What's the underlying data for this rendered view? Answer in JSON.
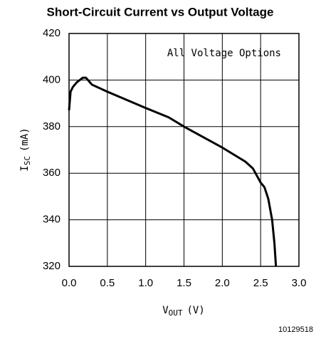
{
  "chart_data": {
    "type": "line",
    "title": "Short-Circuit Current vs Output Voltage",
    "annotation": "All Voltage Options",
    "x_label": {
      "main": "V",
      "sub": "OUT",
      "unit": "(V)"
    },
    "y_label": {
      "main": "I",
      "sub": "SC",
      "unit": "(mA)"
    },
    "figure_id": "10129518",
    "x": [
      0.0,
      0.02,
      0.05,
      0.1,
      0.18,
      0.22,
      0.3,
      0.5,
      1.0,
      1.3,
      1.5,
      2.0,
      2.3,
      2.4,
      2.5,
      2.55,
      2.6,
      2.65,
      2.68,
      2.7
    ],
    "values": [
      387,
      395,
      397,
      399,
      401,
      401,
      398,
      395,
      388,
      384,
      380,
      371,
      365,
      362,
      356,
      354,
      349,
      340,
      330,
      320
    ],
    "color": "#000000",
    "xlim": [
      0,
      3
    ],
    "ylim": [
      320,
      420
    ],
    "xticks": [
      {
        "value": 0,
        "label": "0.0"
      },
      0.5,
      {
        "value": 1,
        "label": "1.0"
      },
      1.5,
      {
        "value": 2,
        "label": "2.0"
      },
      2.5,
      {
        "value": 3,
        "label": "3.0"
      }
    ],
    "yticks": [
      320,
      340,
      360,
      380,
      400,
      420
    ],
    "grid": true
  }
}
